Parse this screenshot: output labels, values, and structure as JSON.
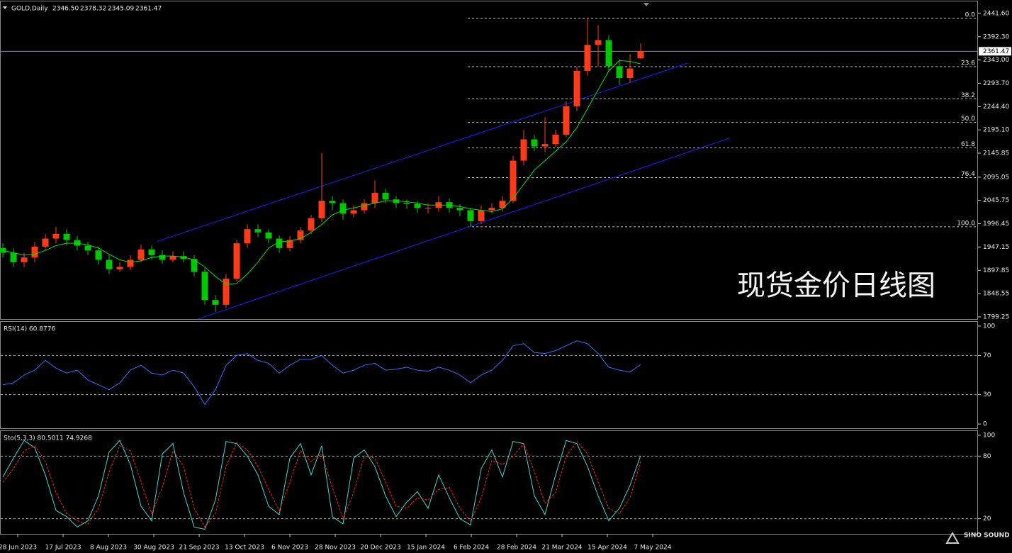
{
  "chart_data": [
    {
      "type": "candlestick",
      "title": "GOLD,Daily",
      "ohlc_labels": [
        "2346.50",
        "2378.32",
        "2345.09",
        "2361.47"
      ],
      "up_color": "#ff3a1a",
      "down_color": "#00c800",
      "open": [
        1945,
        1935,
        1915,
        1925,
        1948,
        1965,
        1975,
        1962,
        1950,
        1940,
        1920,
        1900,
        1905,
        1920,
        1942,
        1930,
        1920,
        1928,
        1922,
        1895,
        1835,
        1825,
        1880,
        1955,
        1985,
        1978,
        1965,
        1945,
        1962,
        1982,
        2008,
        2045,
        2040,
        2018,
        2025,
        2040,
        2062,
        2048,
        2040,
        2038,
        2030,
        2030,
        2042,
        2030,
        2025,
        2002,
        2025,
        2030,
        2045,
        2130,
        2175,
        2160,
        2165,
        2185,
        2245,
        2320,
        2375,
        2385,
        2330,
        2305,
        2346.5
      ],
      "high": [
        1955,
        1945,
        1935,
        1958,
        1975,
        1990,
        1985,
        1970,
        1958,
        1948,
        1930,
        1915,
        1930,
        1952,
        1950,
        1940,
        1938,
        1938,
        1930,
        1902,
        1845,
        1890,
        1962,
        1995,
        1995,
        1985,
        1972,
        1970,
        1990,
        2015,
        2146,
        2055,
        2048,
        2035,
        2048,
        2088,
        2070,
        2055,
        2048,
        2045,
        2040,
        2055,
        2050,
        2038,
        2030,
        2035,
        2040,
        2055,
        2140,
        2195,
        2185,
        2222,
        2195,
        2255,
        2330,
        2431,
        2417,
        2395,
        2345,
        2355,
        2378.32
      ],
      "low": [
        1925,
        1905,
        1905,
        1915,
        1940,
        1955,
        1950,
        1940,
        1930,
        1910,
        1890,
        1895,
        1898,
        1915,
        1920,
        1912,
        1915,
        1915,
        1885,
        1825,
        1810,
        1818,
        1875,
        1945,
        1968,
        1955,
        1935,
        1938,
        1955,
        1975,
        2000,
        2025,
        2005,
        2010,
        2018,
        2030,
        2040,
        2030,
        2028,
        2020,
        2018,
        2022,
        2020,
        2012,
        1990,
        1995,
        2018,
        2022,
        2040,
        2120,
        2150,
        2148,
        2158,
        2180,
        2235,
        2310,
        2330,
        2320,
        2290,
        2295,
        2345.09
      ],
      "close": [
        1935,
        1915,
        1925,
        1948,
        1965,
        1975,
        1962,
        1950,
        1940,
        1920,
        1900,
        1905,
        1920,
        1942,
        1930,
        1920,
        1928,
        1922,
        1895,
        1835,
        1825,
        1880,
        1955,
        1985,
        1978,
        1965,
        1945,
        1962,
        1982,
        2008,
        2045,
        2040,
        2018,
        2025,
        2040,
        2062,
        2048,
        2040,
        2038,
        2030,
        2030,
        2042,
        2030,
        2025,
        2002,
        2025,
        2030,
        2045,
        2130,
        2175,
        2160,
        2165,
        2185,
        2245,
        2320,
        2375,
        2385,
        2330,
        2305,
        2325,
        2361.47
      ],
      "ma": {
        "color": "#00e000",
        "values": [
          1940,
          1935,
          1930,
          1932,
          1940,
          1950,
          1955,
          1955,
          1952,
          1945,
          1932,
          1920,
          1915,
          1918,
          1925,
          1928,
          1928,
          1926,
          1920,
          1905,
          1885,
          1868,
          1870,
          1890,
          1915,
          1945,
          1958,
          1960,
          1965,
          1978,
          1995,
          2015,
          2025,
          2030,
          2035,
          2040,
          2045,
          2045,
          2043,
          2040,
          2036,
          2036,
          2036,
          2033,
          2028,
          2025,
          2022,
          2028,
          2050,
          2080,
          2110,
          2130,
          2150,
          2170,
          2200,
          2240,
          2280,
          2320,
          2342,
          2340,
          2335
        ]
      },
      "last_price": 2361.47,
      "trendlines": [
        {
          "color": "#1a1aff",
          "from": [
            14.5,
            1958.8
          ],
          "to": [
            64.4,
            2336.3
          ]
        },
        {
          "color": "#1a1aff",
          "from": [
            18.4,
            1795
          ],
          "to": [
            68.4,
            2178
          ]
        }
      ],
      "fib": [
        {
          "label": "0.0",
          "price": 2431
        },
        {
          "label": "23.6",
          "price": 2329
        },
        {
          "label": "38.2",
          "price": 2261
        },
        {
          "label": "50.0",
          "price": 2211
        },
        {
          "label": "61.8",
          "price": 2157
        },
        {
          "label": "76.4",
          "price": 2094
        },
        {
          "label": "100.0",
          "price": 1990
        }
      ],
      "ylim": [
        1794.7,
        2467
      ],
      "yticks": [
        {
          "value": 2441.6,
          "label": "2441.60"
        },
        {
          "value": 2392.3,
          "label": "2392.30"
        },
        {
          "value": 2343,
          "label": "2343.00"
        },
        {
          "value": 2293.7,
          "label": "2293.70"
        },
        {
          "value": 2244.4,
          "label": "2244.40"
        },
        {
          "value": 2195.1,
          "label": "2195.10"
        },
        2145.85,
        2095.05,
        2045.75,
        1996.45,
        1947.15,
        1897.85,
        1848.55,
        1799.25
      ],
      "x_labels": [
        "28 Jun 2023",
        "17 Jul 2023",
        "8 Aug 2023",
        "30 Aug 2023",
        "21 Sep 2023",
        "13 Oct 2023",
        "6 Nov 2023",
        "28 Nov 2023",
        "20 Dec 2023",
        "15 Jan 2024",
        "6 Feb 2024",
        "28 Feb 2024",
        "21 Mar 2024",
        "15 Apr 2024",
        "7 May 2024"
      ],
      "watermark": "现货金价日线图",
      "logo": "SINO SOUND"
    },
    {
      "type": "line",
      "title": "RSI(14) 60.8776",
      "series": [
        {
          "color": "#2f6fff",
          "values": [
            40,
            42,
            50,
            55,
            65,
            57,
            52,
            55,
            45,
            40,
            35,
            42,
            55,
            60,
            52,
            50,
            55,
            52,
            38,
            20,
            35,
            60,
            70,
            72,
            65,
            62,
            52,
            60,
            66,
            66,
            70,
            60,
            52,
            55,
            60,
            62,
            55,
            56,
            58,
            55,
            54,
            58,
            55,
            50,
            42,
            50,
            55,
            65,
            80,
            82,
            73,
            72,
            75,
            80,
            85,
            82,
            72,
            58,
            55,
            53,
            60.8776
          ]
        }
      ],
      "ylim": [
        -4.3,
        104.3
      ],
      "yticks": [
        100,
        70,
        30,
        0
      ],
      "levels": [
        70,
        30
      ]
    },
    {
      "type": "line",
      "title": "Sto(5,3,3) 80.5011 74.9268",
      "series": [
        {
          "color": "#40d8d0",
          "values": [
            60,
            78,
            95,
            88,
            62,
            28,
            22,
            12,
            18,
            42,
            84,
            95,
            72,
            32,
            18,
            82,
            92,
            45,
            12,
            10,
            38,
            94,
            92,
            80,
            62,
            32,
            24,
            78,
            92,
            62,
            90,
            22,
            15,
            78,
            86,
            70,
            42,
            22,
            36,
            46,
            30,
            62,
            40,
            20,
            14,
            68,
            86,
            60,
            94,
            92,
            42,
            24,
            62,
            95,
            92,
            70,
            42,
            18,
            30,
            52,
            80.5011
          ]
        },
        {
          "color": "#ff2020",
          "dashed": true,
          "values": [
            55,
            68,
            85,
            90,
            75,
            45,
            25,
            18,
            15,
            30,
            65,
            90,
            85,
            55,
            25,
            50,
            85,
            70,
            30,
            12,
            25,
            70,
            93,
            86,
            70,
            48,
            28,
            55,
            85,
            75,
            82,
            50,
            20,
            45,
            80,
            78,
            55,
            32,
            30,
            40,
            38,
            48,
            50,
            30,
            18,
            40,
            76,
            72,
            80,
            92,
            65,
            35,
            45,
            80,
            94,
            82,
            55,
            30,
            25,
            40,
            74.9268
          ]
        }
      ],
      "ylim": [
        5.5,
        104
      ],
      "yticks": [
        100,
        80,
        20
      ],
      "levels": [
        80,
        20
      ]
    }
  ]
}
